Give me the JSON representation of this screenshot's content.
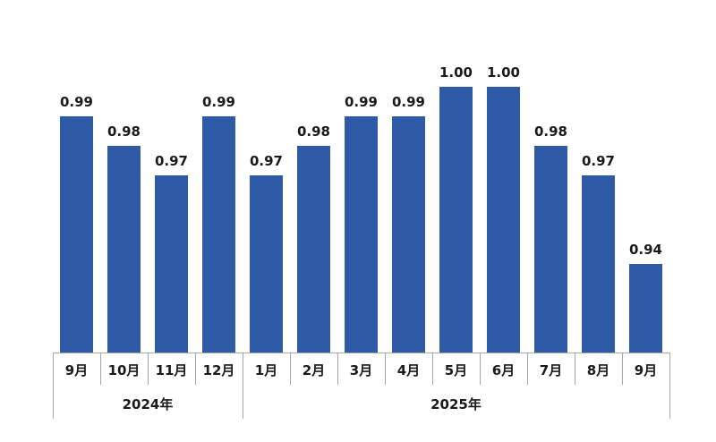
{
  "chart_data": {
    "type": "bar",
    "title": "",
    "xlabel": "",
    "ylabel": "",
    "categories": [
      "9月",
      "10月",
      "11月",
      "12月",
      "1月",
      "2月",
      "3月",
      "4月",
      "5月",
      "6月",
      "7月",
      "8月",
      "9月"
    ],
    "values": [
      0.99,
      0.98,
      0.97,
      0.99,
      0.97,
      0.98,
      0.99,
      0.99,
      1.0,
      1.0,
      0.98,
      0.97,
      0.94
    ],
    "data_labels": [
      "0.99",
      "0.98",
      "0.97",
      "0.99",
      "0.97",
      "0.98",
      "0.99",
      "0.99",
      "1.00",
      "1.00",
      "0.98",
      "0.97",
      "0.94"
    ],
    "year_groups": [
      {
        "label": "2024年",
        "start": 0,
        "count": 4
      },
      {
        "label": "2025年",
        "start": 4,
        "count": 9
      }
    ],
    "ylim": [
      0.91,
      1.02
    ],
    "grid": false,
    "legend": false,
    "bar_color": "#2F5AA5",
    "label_color": "#1A1A1A",
    "axis_color": "#A6A6A6",
    "background": "#FFFFFF"
  }
}
